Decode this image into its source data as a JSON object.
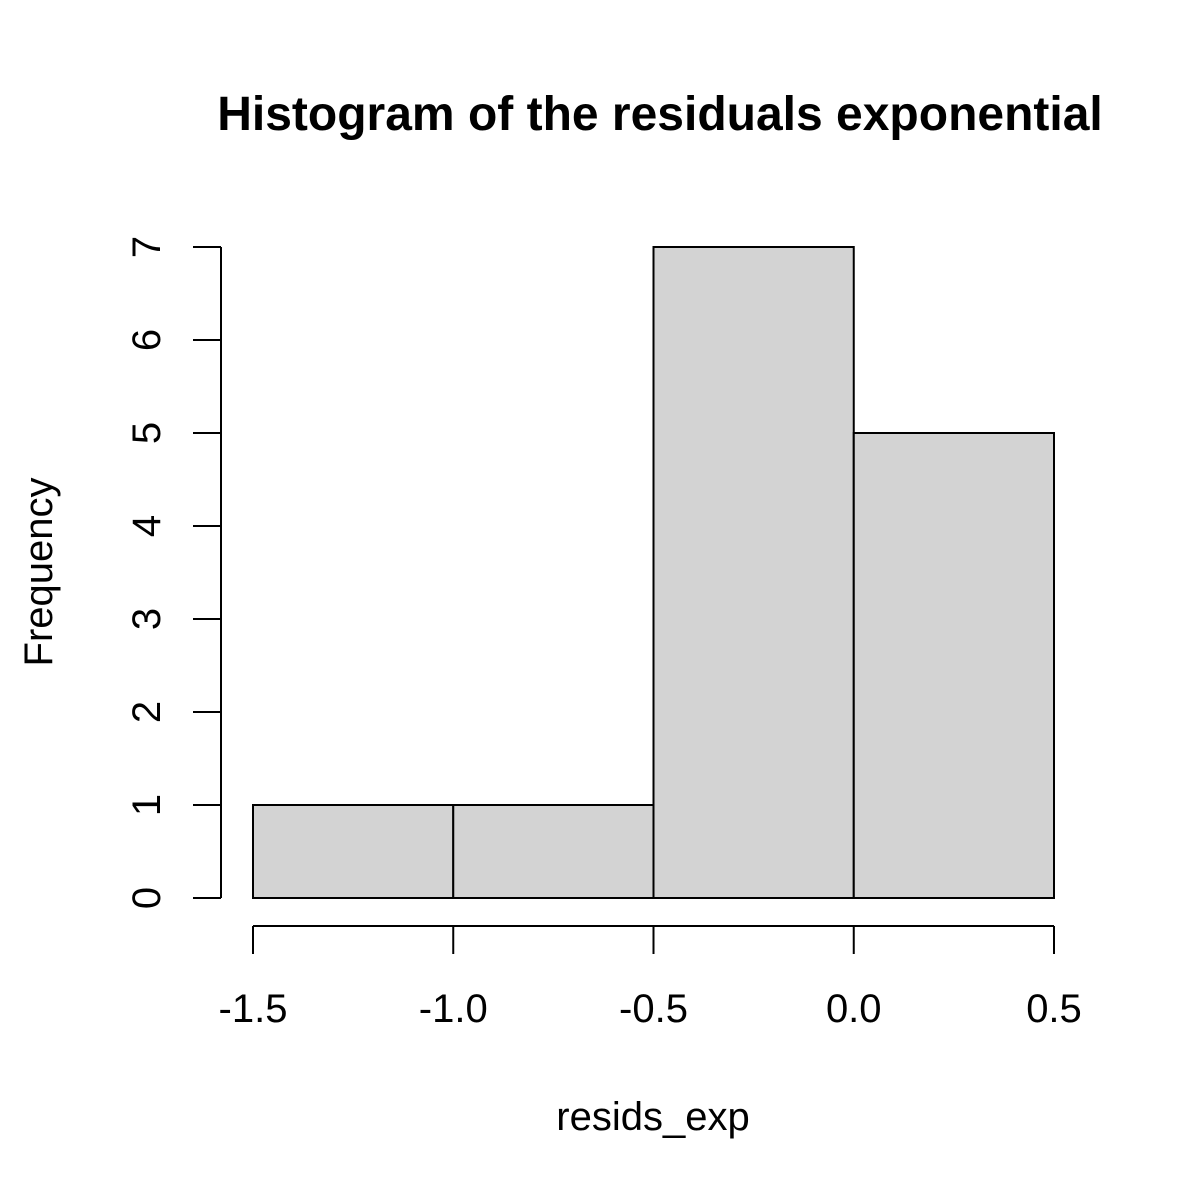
{
  "chart_data": {
    "type": "bar",
    "title": "Histogram of the residuals exponential",
    "xlabel": "resids_exp",
    "ylabel": "Frequency",
    "bins": [
      {
        "start": -1.5,
        "end": -1.0,
        "count": 1
      },
      {
        "start": -1.0,
        "end": -0.5,
        "count": 1
      },
      {
        "start": -0.5,
        "end": 0.0,
        "count": 7
      },
      {
        "start": 0.0,
        "end": 0.5,
        "count": 5
      }
    ],
    "categories": [
      "-1.5 to -1.0",
      "-1.0 to -0.5",
      "-0.5 to 0.0",
      "0.0 to 0.5"
    ],
    "values": [
      1,
      1,
      7,
      5
    ],
    "xlim": [
      -1.5,
      0.5
    ],
    "ylim": [
      0,
      7
    ],
    "x_ticks": [
      -1.5,
      -1.0,
      -0.5,
      0.0,
      0.5
    ],
    "x_tick_labels": [
      "-1.5",
      "-1.0",
      "-0.5",
      "0.0",
      "0.5"
    ],
    "y_ticks": [
      0,
      1,
      2,
      3,
      4,
      5,
      6,
      7
    ],
    "y_tick_labels": [
      "0",
      "1",
      "2",
      "3",
      "4",
      "5",
      "6",
      "7"
    ],
    "bar_fill": "#d3d3d3",
    "bar_stroke": "#000000",
    "grid": false
  }
}
